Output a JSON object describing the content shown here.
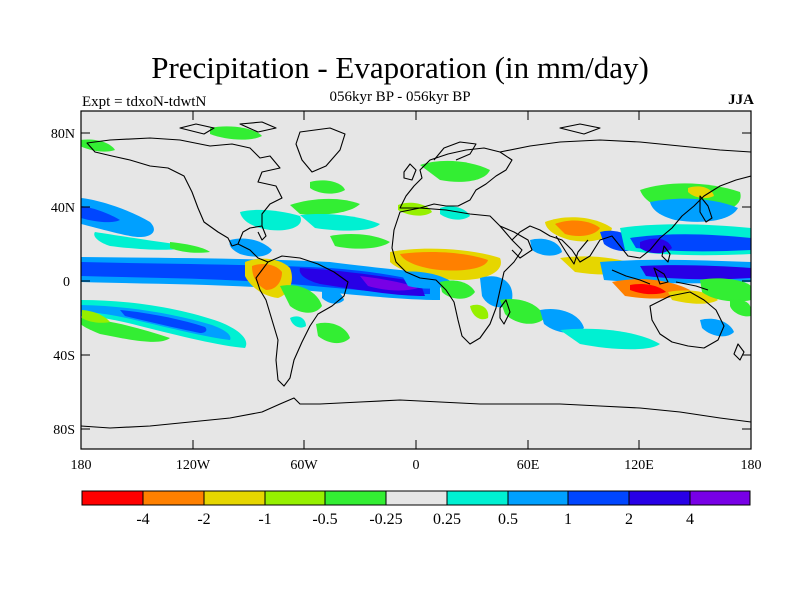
{
  "title": "Precipitation - Evaporation (in mm/day)",
  "subtitle": "056kyr BP - 056kyr BP",
  "experiment_label": "Expt = tdxoN-tdwtN",
  "season_label": "JJA",
  "axes": {
    "lat_ticks": [
      "80N",
      "40N",
      "0",
      "40S",
      "80S"
    ],
    "lon_ticks": [
      "180",
      "120W",
      "60W",
      "0",
      "60E",
      "120E",
      "180"
    ]
  },
  "colors": {
    "background": "#e6e6e6",
    "coast": "#000000"
  },
  "colorbar": {
    "colors": [
      "#ff0000",
      "#ff8000",
      "#e6d600",
      "#96f000",
      "#33ee33",
      "#e6e6e6",
      "#00f0d2",
      "#00a0ff",
      "#0046ff",
      "#2800e6",
      "#7800e6"
    ],
    "labels": [
      "-4",
      "-2",
      "-1",
      "-0.5",
      "-0.25",
      "0.25",
      "0.5",
      "1",
      "2",
      "4"
    ]
  }
}
